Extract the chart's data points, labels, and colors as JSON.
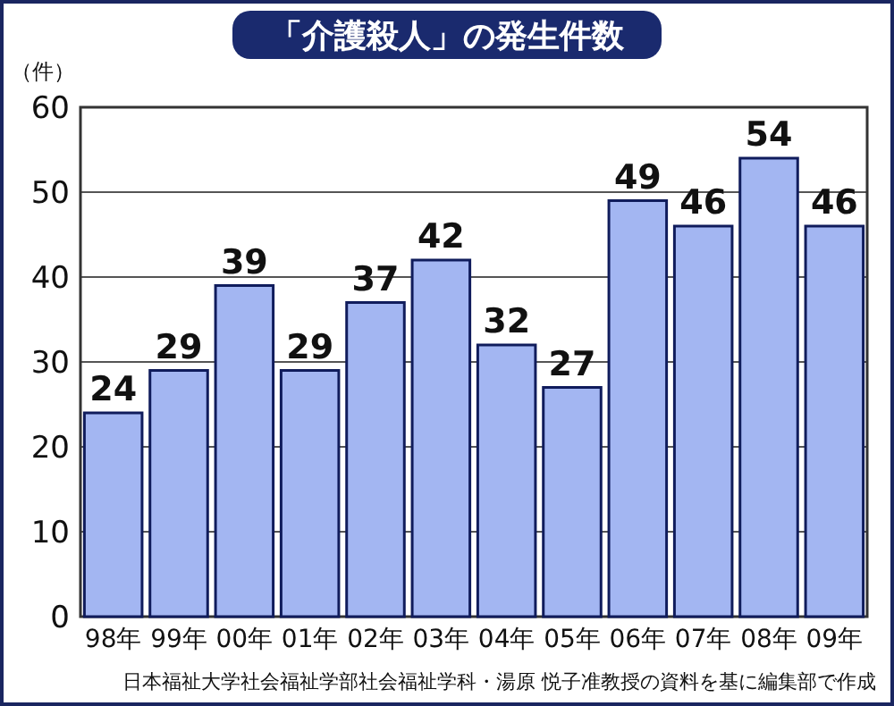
{
  "chart_data": {
    "type": "bar",
    "title": "「介護殺人」の発生件数",
    "ylabel": "（件）",
    "categories": [
      "98年",
      "99年",
      "00年",
      "01年",
      "02年",
      "03年",
      "04年",
      "05年",
      "06年",
      "07年",
      "08年",
      "09年"
    ],
    "values": [
      24,
      29,
      39,
      29,
      37,
      42,
      32,
      27,
      49,
      46,
      54,
      46
    ],
    "color": "#a3b6f2",
    "ylim": [
      0,
      60
    ],
    "yticks": [
      0,
      10,
      20,
      30,
      40,
      50,
      60
    ],
    "grid": "y",
    "data_labels": true,
    "annotations": [
      "日本福祉大学社会福祉学部社会福祉学科・湯原 悦子准教授の資料を基に編集部で作成"
    ]
  }
}
